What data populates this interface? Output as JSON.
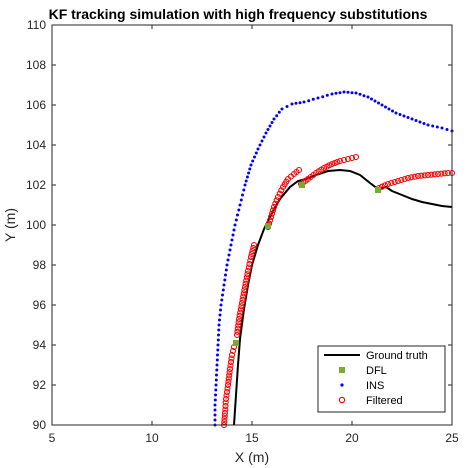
{
  "chart_data": {
    "type": "scatter",
    "title": "KF tracking simulation with high frequency substitutions",
    "xlabel": "X (m)",
    "ylabel": "Y (m)",
    "xlim": [
      5,
      25
    ],
    "ylim": [
      90,
      110
    ],
    "xticks": [
      5,
      10,
      15,
      20,
      25
    ],
    "yticks": [
      90,
      92,
      94,
      96,
      98,
      100,
      102,
      104,
      106,
      108,
      110
    ],
    "grid": false,
    "legend_position": "bottom-right",
    "series": [
      {
        "name": "Ground truth",
        "style": "line",
        "color": "#000000",
        "points": [
          [
            14.1,
            90.0
          ],
          [
            14.2,
            91.5
          ],
          [
            14.3,
            93.0
          ],
          [
            14.4,
            94.3
          ],
          [
            14.6,
            95.8
          ],
          [
            14.8,
            97.0
          ],
          [
            15.0,
            98.0
          ],
          [
            15.3,
            99.0
          ],
          [
            15.6,
            99.8
          ],
          [
            16.0,
            100.6
          ],
          [
            16.4,
            101.3
          ],
          [
            16.9,
            101.9
          ],
          [
            17.3,
            102.2
          ],
          [
            17.7,
            102.3
          ],
          [
            18.2,
            102.5
          ],
          [
            18.8,
            102.7
          ],
          [
            19.4,
            102.75
          ],
          [
            19.9,
            102.7
          ],
          [
            20.4,
            102.5
          ],
          [
            20.9,
            102.1
          ],
          [
            21.3,
            101.8
          ],
          [
            21.7,
            101.9
          ],
          [
            22.0,
            101.7
          ],
          [
            22.5,
            101.5
          ],
          [
            23.0,
            101.3
          ],
          [
            23.5,
            101.15
          ],
          [
            24.0,
            101.05
          ],
          [
            24.5,
            100.95
          ],
          [
            25.0,
            100.9
          ]
        ]
      },
      {
        "name": "DFL",
        "style": "square",
        "color": "#77AC30",
        "points": [
          [
            14.2,
            94.1
          ],
          [
            15.8,
            99.95
          ],
          [
            17.5,
            102.0
          ],
          [
            21.3,
            101.75
          ]
        ]
      },
      {
        "name": "INS",
        "style": "dot",
        "color": "#0000FF",
        "points": [
          [
            13.15,
            90.0
          ],
          [
            13.15,
            91.0
          ],
          [
            13.2,
            92.0
          ],
          [
            13.25,
            93.0
          ],
          [
            13.3,
            94.0
          ],
          [
            13.35,
            95.0
          ],
          [
            13.45,
            96.0
          ],
          [
            13.6,
            97.0
          ],
          [
            13.75,
            98.0
          ],
          [
            13.95,
            99.0
          ],
          [
            14.15,
            100.0
          ],
          [
            14.4,
            101.0
          ],
          [
            14.65,
            102.0
          ],
          [
            14.95,
            103.0
          ],
          [
            15.3,
            103.8
          ],
          [
            15.7,
            104.6
          ],
          [
            16.1,
            105.3
          ],
          [
            16.5,
            105.8
          ],
          [
            17.0,
            106.05
          ],
          [
            17.6,
            106.15
          ],
          [
            18.3,
            106.35
          ],
          [
            19.0,
            106.55
          ],
          [
            19.6,
            106.65
          ],
          [
            20.2,
            106.6
          ],
          [
            20.8,
            106.4
          ],
          [
            21.5,
            106.0
          ],
          [
            22.2,
            105.6
          ],
          [
            23.0,
            105.3
          ],
          [
            23.8,
            105.0
          ],
          [
            24.5,
            104.85
          ],
          [
            25.0,
            104.7
          ]
        ]
      },
      {
        "name": "Filtered",
        "style": "circle",
        "color": "#FF0000",
        "segments": [
          [
            [
              13.6,
              90.0
            ],
            [
              13.65,
              90.6
            ],
            [
              13.7,
              91.3
            ],
            [
              13.8,
              92.0
            ],
            [
              13.9,
              92.8
            ],
            [
              14.0,
              93.5
            ],
            [
              14.1,
              93.9
            ]
          ],
          [
            [
              14.25,
              94.5
            ],
            [
              14.35,
              95.3
            ],
            [
              14.5,
              96.1
            ],
            [
              14.65,
              96.9
            ],
            [
              14.8,
              97.7
            ],
            [
              14.95,
              98.4
            ],
            [
              15.1,
              99.0
            ]
          ],
          [
            [
              15.8,
              99.9
            ],
            [
              15.95,
              100.4
            ],
            [
              16.1,
              100.9
            ],
            [
              16.3,
              101.4
            ],
            [
              16.55,
              101.9
            ],
            [
              16.8,
              102.3
            ],
            [
              17.1,
              102.55
            ],
            [
              17.35,
              102.75
            ]
          ],
          [
            [
              17.45,
              102.05
            ],
            [
              17.8,
              102.3
            ],
            [
              18.2,
              102.6
            ],
            [
              18.6,
              102.85
            ],
            [
              19.0,
              103.05
            ],
            [
              19.4,
              103.2
            ],
            [
              19.8,
              103.3
            ],
            [
              20.2,
              103.4
            ]
          ],
          [
            [
              21.35,
              101.85
            ],
            [
              21.8,
              102.05
            ],
            [
              22.3,
              102.2
            ],
            [
              22.8,
              102.35
            ],
            [
              23.3,
              102.45
            ],
            [
              23.8,
              102.5
            ],
            [
              24.3,
              102.55
            ],
            [
              24.8,
              102.6
            ],
            [
              25.0,
              102.6
            ]
          ]
        ]
      }
    ]
  }
}
